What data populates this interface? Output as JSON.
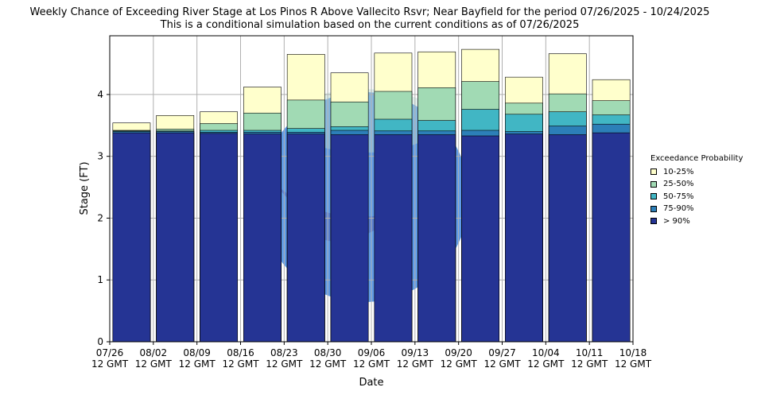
{
  "chart_data": {
    "type": "bar",
    "title": "Weekly Chance of Exceeding River Stage at Los Pinos R Above Vallecito Rsvr; Near Bayfield for the period 07/26/2025 - 10/24/2025",
    "subtitle": "This is a conditional simulation based on the current conditions as of 07/26/2025",
    "xlabel": "Date",
    "ylabel": "Stage (FT)",
    "ylim": [
      0,
      4.95
    ],
    "yticks": [
      0,
      1,
      2,
      3,
      4
    ],
    "xticks": [
      "07/26\n12 GMT",
      "08/02\n12 GMT",
      "08/09\n12 GMT",
      "08/16\n12 GMT",
      "08/23\n12 GMT",
      "08/30\n12 GMT",
      "09/06\n12 GMT",
      "09/13\n12 GMT",
      "09/20\n12 GMT",
      "09/27\n12 GMT",
      "10/04\n12 GMT",
      "10/11\n12 GMT",
      "10/18\n12 GMT"
    ],
    "grid": true,
    "legend_title": "Exceedance Probability",
    "legend_position": "right",
    "series": [
      {
        "name": "10-25%",
        "color": "#ffffcc",
        "values": [
          3.54,
          3.66,
          3.72,
          4.12,
          4.65,
          4.35,
          4.67,
          4.69,
          4.73,
          4.28,
          4.66,
          4.24
        ]
      },
      {
        "name": "25-50%",
        "color": "#a1dab4",
        "values": [
          3.42,
          3.44,
          3.53,
          3.7,
          3.91,
          3.88,
          4.05,
          4.11,
          4.21,
          3.86,
          4.01,
          3.9
        ]
      },
      {
        "name": "50-75%",
        "color": "#41b6c4",
        "values": [
          3.41,
          3.41,
          3.42,
          3.42,
          3.45,
          3.48,
          3.6,
          3.58,
          3.76,
          3.68,
          3.72,
          3.67
        ]
      },
      {
        "name": "75-90%",
        "color": "#2c7fb8",
        "values": [
          3.4,
          3.4,
          3.39,
          3.39,
          3.39,
          3.42,
          3.41,
          3.41,
          3.42,
          3.4,
          3.49,
          3.52
        ]
      },
      {
        "name": "> 90%",
        "color": "#253494",
        "values": [
          3.38,
          3.38,
          3.37,
          3.36,
          3.36,
          3.35,
          3.35,
          3.35,
          3.33,
          3.36,
          3.35,
          3.38
        ]
      }
    ]
  }
}
